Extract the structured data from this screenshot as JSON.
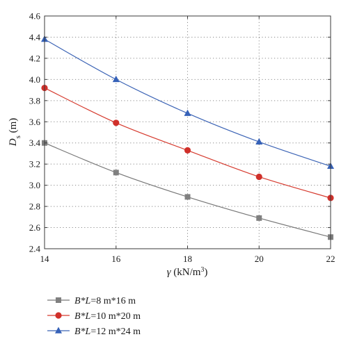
{
  "chart_data": {
    "type": "line",
    "x": [
      14,
      16,
      18,
      20,
      22
    ],
    "xlim": [
      14,
      22
    ],
    "ylim": [
      2.4,
      4.6
    ],
    "xticks": [
      "14",
      "16",
      "18",
      "20",
      "22"
    ],
    "yticks": [
      "2.4",
      "2.6",
      "2.8",
      "3.0",
      "3.2",
      "3.4",
      "3.6",
      "3.8",
      "4.0",
      "4.2",
      "4.4",
      "4.6"
    ],
    "xlabel": {
      "symbol": "γ",
      "unit_prefix": " (kN/m",
      "unit_sup": "3",
      "unit_suffix": ")"
    },
    "ylabel": {
      "symbol": "D",
      "sub": "s",
      "unit": " (m)"
    },
    "grid": true,
    "legend_position": "below",
    "series": [
      {
        "name": "B*L=8 m*16 m",
        "legend_var": "B*L",
        "legend_value": "=8 m*16 m",
        "marker": "square",
        "color": "#777777",
        "marker_color": "#808080",
        "values": [
          3.4,
          3.12,
          2.89,
          2.69,
          2.51
        ]
      },
      {
        "name": "B*L=10 m*20 m",
        "legend_var": "B*L",
        "legend_value": "=10 m*20 m",
        "marker": "circle",
        "color": "#d63b2f",
        "marker_color": "#d0302a",
        "values": [
          3.92,
          3.59,
          3.33,
          3.08,
          2.88
        ]
      },
      {
        "name": "B*L=12 m*24 m",
        "legend_var": "B*L",
        "legend_value": "=12 m*24 m",
        "marker": "triangle",
        "color": "#3b63b5",
        "marker_color": "#3561b8",
        "values": [
          4.38,
          4.0,
          3.68,
          3.41,
          3.18
        ]
      }
    ]
  }
}
